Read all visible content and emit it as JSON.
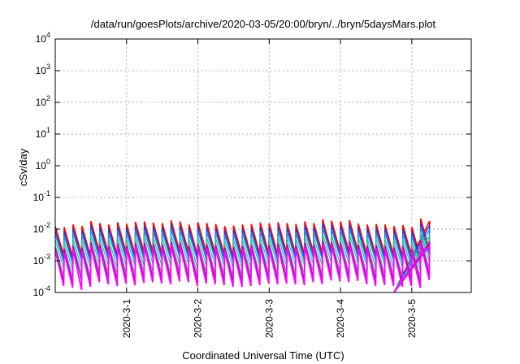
{
  "chart_data": {
    "type": "line",
    "title": "/data/run/goesPlots/archive/2020-03-05/20:00/bryn/../bryn/5daysMars.plot",
    "xlabel": "Coordinated Universal Time (UTC)",
    "ylabel": "cSv/day",
    "y_scale": "log",
    "ylim": [
      0.0001,
      10000
    ],
    "xlim": [
      "2020-02-29 00:00",
      "2020-03-05 20:00"
    ],
    "x_ticks": [
      {
        "value": "2020-03-01 00:00",
        "label": "2020-3-1"
      },
      {
        "value": "2020-03-02 00:00",
        "label": "2020-3-2"
      },
      {
        "value": "2020-03-03 00:00",
        "label": "2020-3-3"
      },
      {
        "value": "2020-03-04 00:00",
        "label": "2020-3-4"
      },
      {
        "value": "2020-03-05 00:00",
        "label": "2020-3-5"
      }
    ],
    "y_ticks": [
      {
        "value": 0.0001,
        "base": "10",
        "exp": "-4"
      },
      {
        "value": 0.001,
        "base": "10",
        "exp": "-3"
      },
      {
        "value": 0.01,
        "base": "10",
        "exp": "-2"
      },
      {
        "value": 0.1,
        "base": "10",
        "exp": "-1"
      },
      {
        "value": 1,
        "base": "10",
        "exp": "0"
      },
      {
        "value": 10,
        "base": "10",
        "exp": "1"
      },
      {
        "value": 100,
        "base": "10",
        "exp": "2"
      },
      {
        "value": 1000,
        "base": "10",
        "exp": "3"
      },
      {
        "value": 10000,
        "base": "10",
        "exp": "4"
      }
    ],
    "grid": true,
    "pattern": {
      "start": "2020-02-29 00:00",
      "step_hours": 3,
      "end_of_sawtooth": "2020-03-04 09:00",
      "decay_to": "2020-03-04 18:00"
    },
    "series": [
      {
        "color": "#ff0000",
        "width": 1.6,
        "peaks": [
          0.0125,
          0.0115,
          0.014,
          0.0125,
          0.018,
          0.0155,
          0.014,
          0.0165,
          0.0145,
          0.017,
          0.0175,
          0.016,
          0.0155,
          0.019,
          0.0175,
          0.014,
          0.0165,
          0.0155,
          0.0145,
          0.0125,
          0.013,
          0.014,
          0.0145,
          0.016,
          0.015,
          0.0165,
          0.0155,
          0.0145,
          0.0175,
          0.0155,
          0.0205,
          0.0185,
          0.0175,
          0.0195,
          0.015,
          0.014,
          0.0145,
          0.014,
          0.0125,
          0.0135,
          0.0115,
          0.0215,
          0.018
        ],
        "troughs": [
          0.0015,
          0.0013,
          0.0016,
          0.0014,
          0.0019,
          0.0017,
          0.0015,
          0.0018,
          0.0016,
          0.0019,
          0.0019,
          0.0017,
          0.0017,
          0.002,
          0.0019,
          0.0015,
          0.0018,
          0.0017,
          0.0016,
          0.0014,
          0.0015,
          0.0015,
          0.0016,
          0.0017,
          0.0016,
          0.0018,
          0.0017,
          0.0016,
          0.0019,
          0.0017,
          0.0021,
          0.002,
          0.0019,
          0.002,
          0.0016,
          0.0015,
          0.0016,
          0.0015,
          0.0014,
          0.0015,
          0.0013,
          0.0022,
          0.0019
        ],
        "end": 0.0001
      },
      {
        "color": "#1f3fd0",
        "width": 1.4,
        "peaks": [
          0.0092,
          0.0085,
          0.0105,
          0.0092,
          0.0135,
          0.0115,
          0.0105,
          0.0122,
          0.0108,
          0.0125,
          0.013,
          0.0118,
          0.0115,
          0.014,
          0.013,
          0.0105,
          0.0122,
          0.0115,
          0.0108,
          0.0092,
          0.0097,
          0.0105,
          0.0108,
          0.0118,
          0.0112,
          0.0122,
          0.0115,
          0.0108,
          0.013,
          0.0115,
          0.0152,
          0.0137,
          0.013,
          0.0145,
          0.0112,
          0.0105,
          0.0108,
          0.0105,
          0.0092,
          0.01,
          0.0085,
          0.016,
          0.0135
        ],
        "troughs": [
          0.0011,
          0.001,
          0.0012,
          0.0011,
          0.0014,
          0.0013,
          0.0012,
          0.0013,
          0.0012,
          0.0014,
          0.0014,
          0.0013,
          0.0013,
          0.0015,
          0.0014,
          0.0012,
          0.0013,
          0.0013,
          0.0012,
          0.0011,
          0.0011,
          0.0012,
          0.0012,
          0.0013,
          0.0012,
          0.0013,
          0.0013,
          0.0012,
          0.0014,
          0.0013,
          0.0016,
          0.0015,
          0.0014,
          0.0015,
          0.0012,
          0.0012,
          0.0012,
          0.0012,
          0.0011,
          0.0011,
          0.001,
          0.0017,
          0.0014
        ],
        "end": 0.0001
      },
      {
        "color": "#2288ee",
        "width": 1.4,
        "peaks": [
          0.0068,
          0.0062,
          0.0076,
          0.0068,
          0.0098,
          0.0084,
          0.0076,
          0.009,
          0.0079,
          0.0092,
          0.0095,
          0.0087,
          0.0084,
          0.0103,
          0.0095,
          0.0076,
          0.009,
          0.0084,
          0.0079,
          0.0068,
          0.0071,
          0.0076,
          0.0079,
          0.0087,
          0.0082,
          0.009,
          0.0084,
          0.0079,
          0.0095,
          0.0084,
          0.0111,
          0.01,
          0.0095,
          0.0106,
          0.0082,
          0.0076,
          0.0079,
          0.0076,
          0.0068,
          0.0073,
          0.0062,
          0.0117,
          0.0098
        ],
        "troughs": [
          0.0009,
          0.0008,
          0.001,
          0.0009,
          0.0012,
          0.0011,
          0.001,
          0.0011,
          0.001,
          0.0011,
          0.0012,
          0.0011,
          0.0011,
          0.0013,
          0.0012,
          0.001,
          0.0011,
          0.0011,
          0.001,
          0.0009,
          0.0009,
          0.001,
          0.001,
          0.0011,
          0.001,
          0.0011,
          0.0011,
          0.001,
          0.0012,
          0.0011,
          0.0014,
          0.0013,
          0.0012,
          0.0013,
          0.001,
          0.001,
          0.001,
          0.001,
          0.0009,
          0.0009,
          0.0008,
          0.0015,
          0.0012
        ],
        "end": 0.0001
      },
      {
        "color": "#22ccaa",
        "width": 1.3,
        "peaks": [
          0.0045,
          0.0041,
          0.005,
          0.0045,
          0.0064,
          0.0055,
          0.005,
          0.0059,
          0.0052,
          0.006,
          0.0062,
          0.0057,
          0.0055,
          0.0068,
          0.0062,
          0.005,
          0.0059,
          0.0055,
          0.0052,
          0.0045,
          0.0047,
          0.005,
          0.0052,
          0.0057,
          0.0054,
          0.0059,
          0.0055,
          0.0052,
          0.0062,
          0.0055,
          0.0073,
          0.0066,
          0.0062,
          0.0069,
          0.0054,
          0.005,
          0.0052,
          0.005,
          0.0045,
          0.0048,
          0.0041,
          0.0077,
          0.0064
        ],
        "troughs": [
          0.0006,
          0.0005,
          0.0006,
          0.0006,
          0.0008,
          0.0007,
          0.0006,
          0.0007,
          0.0007,
          0.0007,
          0.0008,
          0.0007,
          0.0007,
          0.0008,
          0.0008,
          0.0006,
          0.0007,
          0.0007,
          0.0007,
          0.0006,
          0.0006,
          0.0006,
          0.0007,
          0.0007,
          0.0007,
          0.0007,
          0.0007,
          0.0007,
          0.0008,
          0.0007,
          0.0009,
          0.0008,
          0.0008,
          0.0009,
          0.0007,
          0.0006,
          0.0007,
          0.0006,
          0.0006,
          0.0006,
          0.0005,
          0.001,
          0.0008
        ],
        "end": 0.0001
      },
      {
        "color": "#8a8a8a",
        "width": 1.2,
        "peaks": [
          0.0031,
          0.0029,
          0.0035,
          0.0031,
          0.0045,
          0.0038,
          0.0035,
          0.0041,
          0.0036,
          0.0042,
          0.0044,
          0.004,
          0.0038,
          0.0047,
          0.0044,
          0.0035,
          0.0041,
          0.0038,
          0.0036,
          0.0031,
          0.0033,
          0.0035,
          0.0036,
          0.004,
          0.0037,
          0.0041,
          0.0038,
          0.0036,
          0.0044,
          0.0038,
          0.0051,
          0.0046,
          0.0044,
          0.0048,
          0.0037,
          0.0035,
          0.0036,
          0.0035,
          0.0031,
          0.0034,
          0.0029,
          0.0054,
          0.0045
        ],
        "troughs": [
          0.00032,
          0.00029,
          0.00036,
          0.00032,
          0.00045,
          0.00039,
          0.00036,
          0.00041,
          0.00037,
          0.00043,
          0.00044,
          0.0004,
          0.00039,
          0.00048,
          0.00044,
          0.00036,
          0.00041,
          0.00039,
          0.00037,
          0.00032,
          0.00033,
          0.00036,
          0.00037,
          0.0004,
          0.00038,
          0.00041,
          0.00039,
          0.00037,
          0.00044,
          0.00039,
          0.00051,
          0.00046,
          0.00044,
          0.00049,
          0.00038,
          0.00036,
          0.00037,
          0.00036,
          0.00032,
          0.00034,
          0.00029,
          0.00054,
          0.00045
        ],
        "end": 0.0001
      },
      {
        "color": "#9900cc",
        "width": 1.3,
        "peaks": [
          0.0026,
          0.0024,
          0.0029,
          0.0026,
          0.0037,
          0.0032,
          0.0029,
          0.0034,
          0.003,
          0.0035,
          0.0036,
          0.0033,
          0.0032,
          0.0039,
          0.0036,
          0.0029,
          0.0034,
          0.0032,
          0.003,
          0.0026,
          0.0027,
          0.0029,
          0.003,
          0.0033,
          0.0031,
          0.0034,
          0.0032,
          0.003,
          0.0036,
          0.0032,
          0.0042,
          0.0038,
          0.0036,
          0.004,
          0.0031,
          0.0029,
          0.003,
          0.0029,
          0.0026,
          0.0028,
          0.0024,
          0.0044,
          0.0037
        ],
        "troughs": [
          0.00022,
          0.0002,
          0.00024,
          0.00022,
          0.00031,
          0.00027,
          0.00024,
          0.00028,
          0.00025,
          0.00029,
          0.0003,
          0.00028,
          0.00027,
          0.00033,
          0.0003,
          0.00024,
          0.00028,
          0.00027,
          0.00025,
          0.00022,
          0.00023,
          0.00024,
          0.00025,
          0.00028,
          0.00026,
          0.00028,
          0.00027,
          0.00025,
          0.0003,
          0.00027,
          0.00035,
          0.00032,
          0.0003,
          0.00033,
          0.00026,
          0.00024,
          0.00025,
          0.00024,
          0.00022,
          0.00024,
          0.0002,
          0.00037,
          0.00031
        ],
        "end": 0.0001
      },
      {
        "color": "#ff00ff",
        "width": 1.8,
        "peaks": [
          0.0021,
          0.0019,
          0.0024,
          0.0021,
          0.003,
          0.0026,
          0.0024,
          0.0028,
          0.0025,
          0.0029,
          0.003,
          0.0027,
          0.0026,
          0.0032,
          0.003,
          0.0024,
          0.0028,
          0.0026,
          0.0025,
          0.0021,
          0.0022,
          0.0024,
          0.0025,
          0.0027,
          0.0026,
          0.0028,
          0.0026,
          0.0025,
          0.003,
          0.0026,
          0.0035,
          0.0031,
          0.003,
          0.0033,
          0.0026,
          0.0024,
          0.0025,
          0.0024,
          0.0021,
          0.0023,
          0.0019,
          0.0036,
          0.003
        ],
        "troughs": [
          0.00016,
          0.00014,
          0.00012,
          0.00015,
          0.00021,
          0.00018,
          0.00016,
          0.00019,
          0.00017,
          0.0002,
          0.00021,
          0.00019,
          0.00018,
          0.00022,
          0.00021,
          0.00016,
          0.00019,
          0.00018,
          0.00017,
          0.00015,
          0.00015,
          0.00016,
          0.00017,
          0.00019,
          0.00018,
          0.00019,
          0.00018,
          0.00017,
          0.00021,
          0.00018,
          0.00024,
          0.00022,
          0.00021,
          0.00023,
          0.00018,
          0.00016,
          0.00017,
          0.00016,
          0.00015,
          0.00016,
          0.00014,
          0.00025,
          0.00021
        ],
        "end": 0.0001
      }
    ]
  }
}
